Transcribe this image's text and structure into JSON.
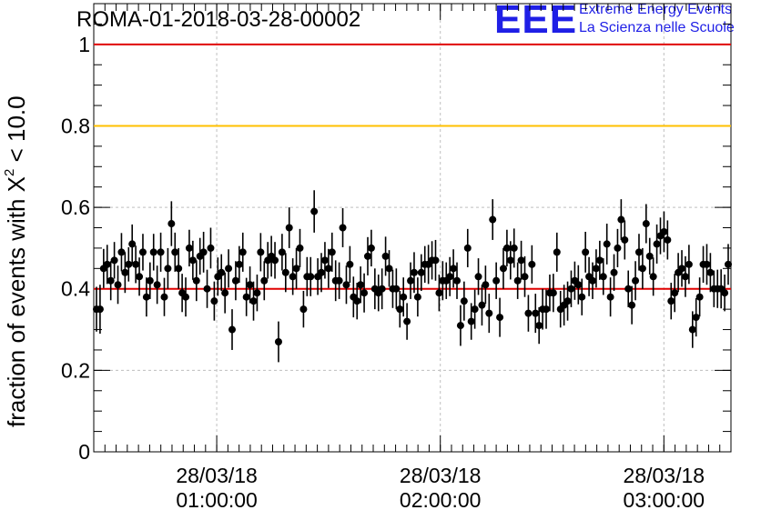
{
  "chart_data": {
    "type": "scatter",
    "title": "ROMA-01-2018-03-28-00002",
    "ylabel_prefix": "fraction of events with X",
    "ylabel_sup": "2",
    "ylabel_suffix": " < 10.0",
    "ylim": [
      0,
      1.1
    ],
    "yticks": [
      "0",
      "0.2",
      "0.4",
      "0.6",
      "0.8",
      "1"
    ],
    "xtick_labels": [
      {
        "date": "28/03/18",
        "time": "01:00:00"
      },
      {
        "date": "28/03/18",
        "time": "02:00:00"
      },
      {
        "date": "28/03/18",
        "time": "03:00:00"
      }
    ],
    "xlim": [
      "00:27",
      "03:18"
    ],
    "grid": true,
    "reference_lines": [
      {
        "y": 1.0,
        "color": "#e00000"
      },
      {
        "y": 0.8,
        "color": "#ffc000"
      },
      {
        "y": 0.4,
        "color": "#e00000"
      }
    ],
    "series": [
      {
        "values": [
          0.35,
          0.35,
          0.45,
          0.46,
          0.42,
          0.47,
          0.41,
          0.49,
          0.44,
          0.46,
          0.51,
          0.46,
          0.43,
          0.49,
          0.38,
          0.42,
          0.49,
          0.41,
          0.49,
          0.38,
          0.45,
          0.56,
          0.49,
          0.45,
          0.39,
          0.38,
          0.5,
          0.47,
          0.42,
          0.48,
          0.49,
          0.4,
          0.5,
          0.37,
          0.43,
          0.44,
          0.39,
          0.45,
          0.3,
          0.42,
          0.46,
          0.49,
          0.38,
          0.41,
          0.37,
          0.39,
          0.49,
          0.42,
          0.47,
          0.48,
          0.47,
          0.27,
          0.49,
          0.44,
          0.55,
          0.43,
          0.45,
          0.5,
          0.35,
          0.43,
          0.43,
          0.59,
          0.43,
          0.44,
          0.47,
          0.45,
          0.49,
          0.42,
          0.42,
          0.55,
          0.41,
          0.46,
          0.38,
          0.37,
          0.41,
          0.39,
          0.48,
          0.5,
          0.4,
          0.39,
          0.4,
          0.48,
          0.45,
          0.4,
          0.4,
          0.35,
          0.38,
          0.32,
          0.42,
          0.44,
          0.38,
          0.44,
          0.46,
          0.46,
          0.47,
          0.47,
          0.39,
          0.42,
          0.42,
          0.43,
          0.45,
          0.42,
          0.31,
          0.37,
          0.5,
          0.32,
          0.35,
          0.43,
          0.36,
          0.41,
          0.34,
          0.57,
          0.42,
          0.33,
          0.45,
          0.5,
          0.47,
          0.5,
          0.42,
          0.47,
          0.43,
          0.34,
          0.46,
          0.34,
          0.31,
          0.35,
          0.35,
          0.39,
          0.39,
          0.49,
          0.35,
          0.36,
          0.37,
          0.4,
          0.42,
          0.41,
          0.38,
          0.49,
          0.43,
          0.42,
          0.45,
          0.47,
          0.43,
          0.51,
          0.38,
          0.44,
          0.5,
          0.57,
          0.52,
          0.4,
          0.36,
          0.42,
          0.49,
          0.45,
          0.56,
          0.48,
          0.43,
          0.51,
          0.53,
          0.54,
          0.52,
          0.37,
          0.39,
          0.44,
          0.45,
          0.43,
          0.46,
          0.3,
          0.33,
          0.38,
          0.46,
          0.46,
          0.44,
          0.4,
          0.4,
          0.4,
          0.39,
          0.46
        ]
      }
    ],
    "error": [
      0.055,
      0.06,
      0.048,
      0.048,
      0.048,
      0.045,
      0.047,
      0.047,
      0.05,
      0.042,
      0.048,
      0.046,
      0.047,
      0.045,
      0.048,
      0.045,
      0.045,
      0.047,
      0.048,
      0.047,
      0.05,
      0.055,
      0.048,
      0.05,
      0.047,
      0.048,
      0.045,
      0.048,
      0.05,
      0.045,
      0.05,
      0.047,
      0.05,
      0.048,
      0.047,
      0.045,
      0.05,
      0.047,
      0.05,
      0.048,
      0.045,
      0.048,
      0.047,
      0.045,
      0.048,
      0.045,
      0.047,
      0.048,
      0.045,
      0.05,
      0.045,
      0.05,
      0.045,
      0.048,
      0.05,
      0.045,
      0.05,
      0.047,
      0.045,
      0.048,
      0.048,
      0.052,
      0.045,
      0.048,
      0.045,
      0.048,
      0.048,
      0.05,
      0.045,
      0.048,
      0.047,
      0.045,
      0.05,
      0.045,
      0.045,
      0.048,
      0.047,
      0.045,
      0.05,
      0.045,
      0.05,
      0.048,
      0.045,
      0.047,
      0.05,
      0.045,
      0.048,
      0.045,
      0.045,
      0.05,
      0.048,
      0.045,
      0.045,
      0.048,
      0.047,
      0.05,
      0.045,
      0.048,
      0.045,
      0.048,
      0.047,
      0.045,
      0.05,
      0.048,
      0.047,
      0.045,
      0.048,
      0.045,
      0.05,
      0.047,
      0.048,
      0.05,
      0.045,
      0.048,
      0.05,
      0.045,
      0.047,
      0.048,
      0.045,
      0.048,
      0.05,
      0.045,
      0.047,
      0.048,
      0.045,
      0.05,
      0.048,
      0.045,
      0.047,
      0.048,
      0.045,
      0.05,
      0.048,
      0.045,
      0.047,
      0.048,
      0.045,
      0.05,
      0.048,
      0.045,
      0.047,
      0.048,
      0.045,
      0.05,
      0.048,
      0.045,
      0.047,
      0.05,
      0.048,
      0.045,
      0.047,
      0.048,
      0.045,
      0.05,
      0.048,
      0.045,
      0.047,
      0.048,
      0.045,
      0.05,
      0.048,
      0.045,
      0.047,
      0.048,
      0.045,
      0.05,
      0.048,
      0.045,
      0.047,
      0.048,
      0.045,
      0.05,
      0.048,
      0.045,
      0.047,
      0.048,
      0.045,
      0.05
    ]
  },
  "logo": {
    "mark": "EEE",
    "line1": "Extreme Energy Events",
    "line2": "La Scienza nelle Scuole"
  },
  "colors": {
    "marker": "#000000",
    "red_line": "#e00000",
    "yellow_line": "#ffc000",
    "logo_blue": "#1f1fe6",
    "grid": "#bfbfbf"
  }
}
